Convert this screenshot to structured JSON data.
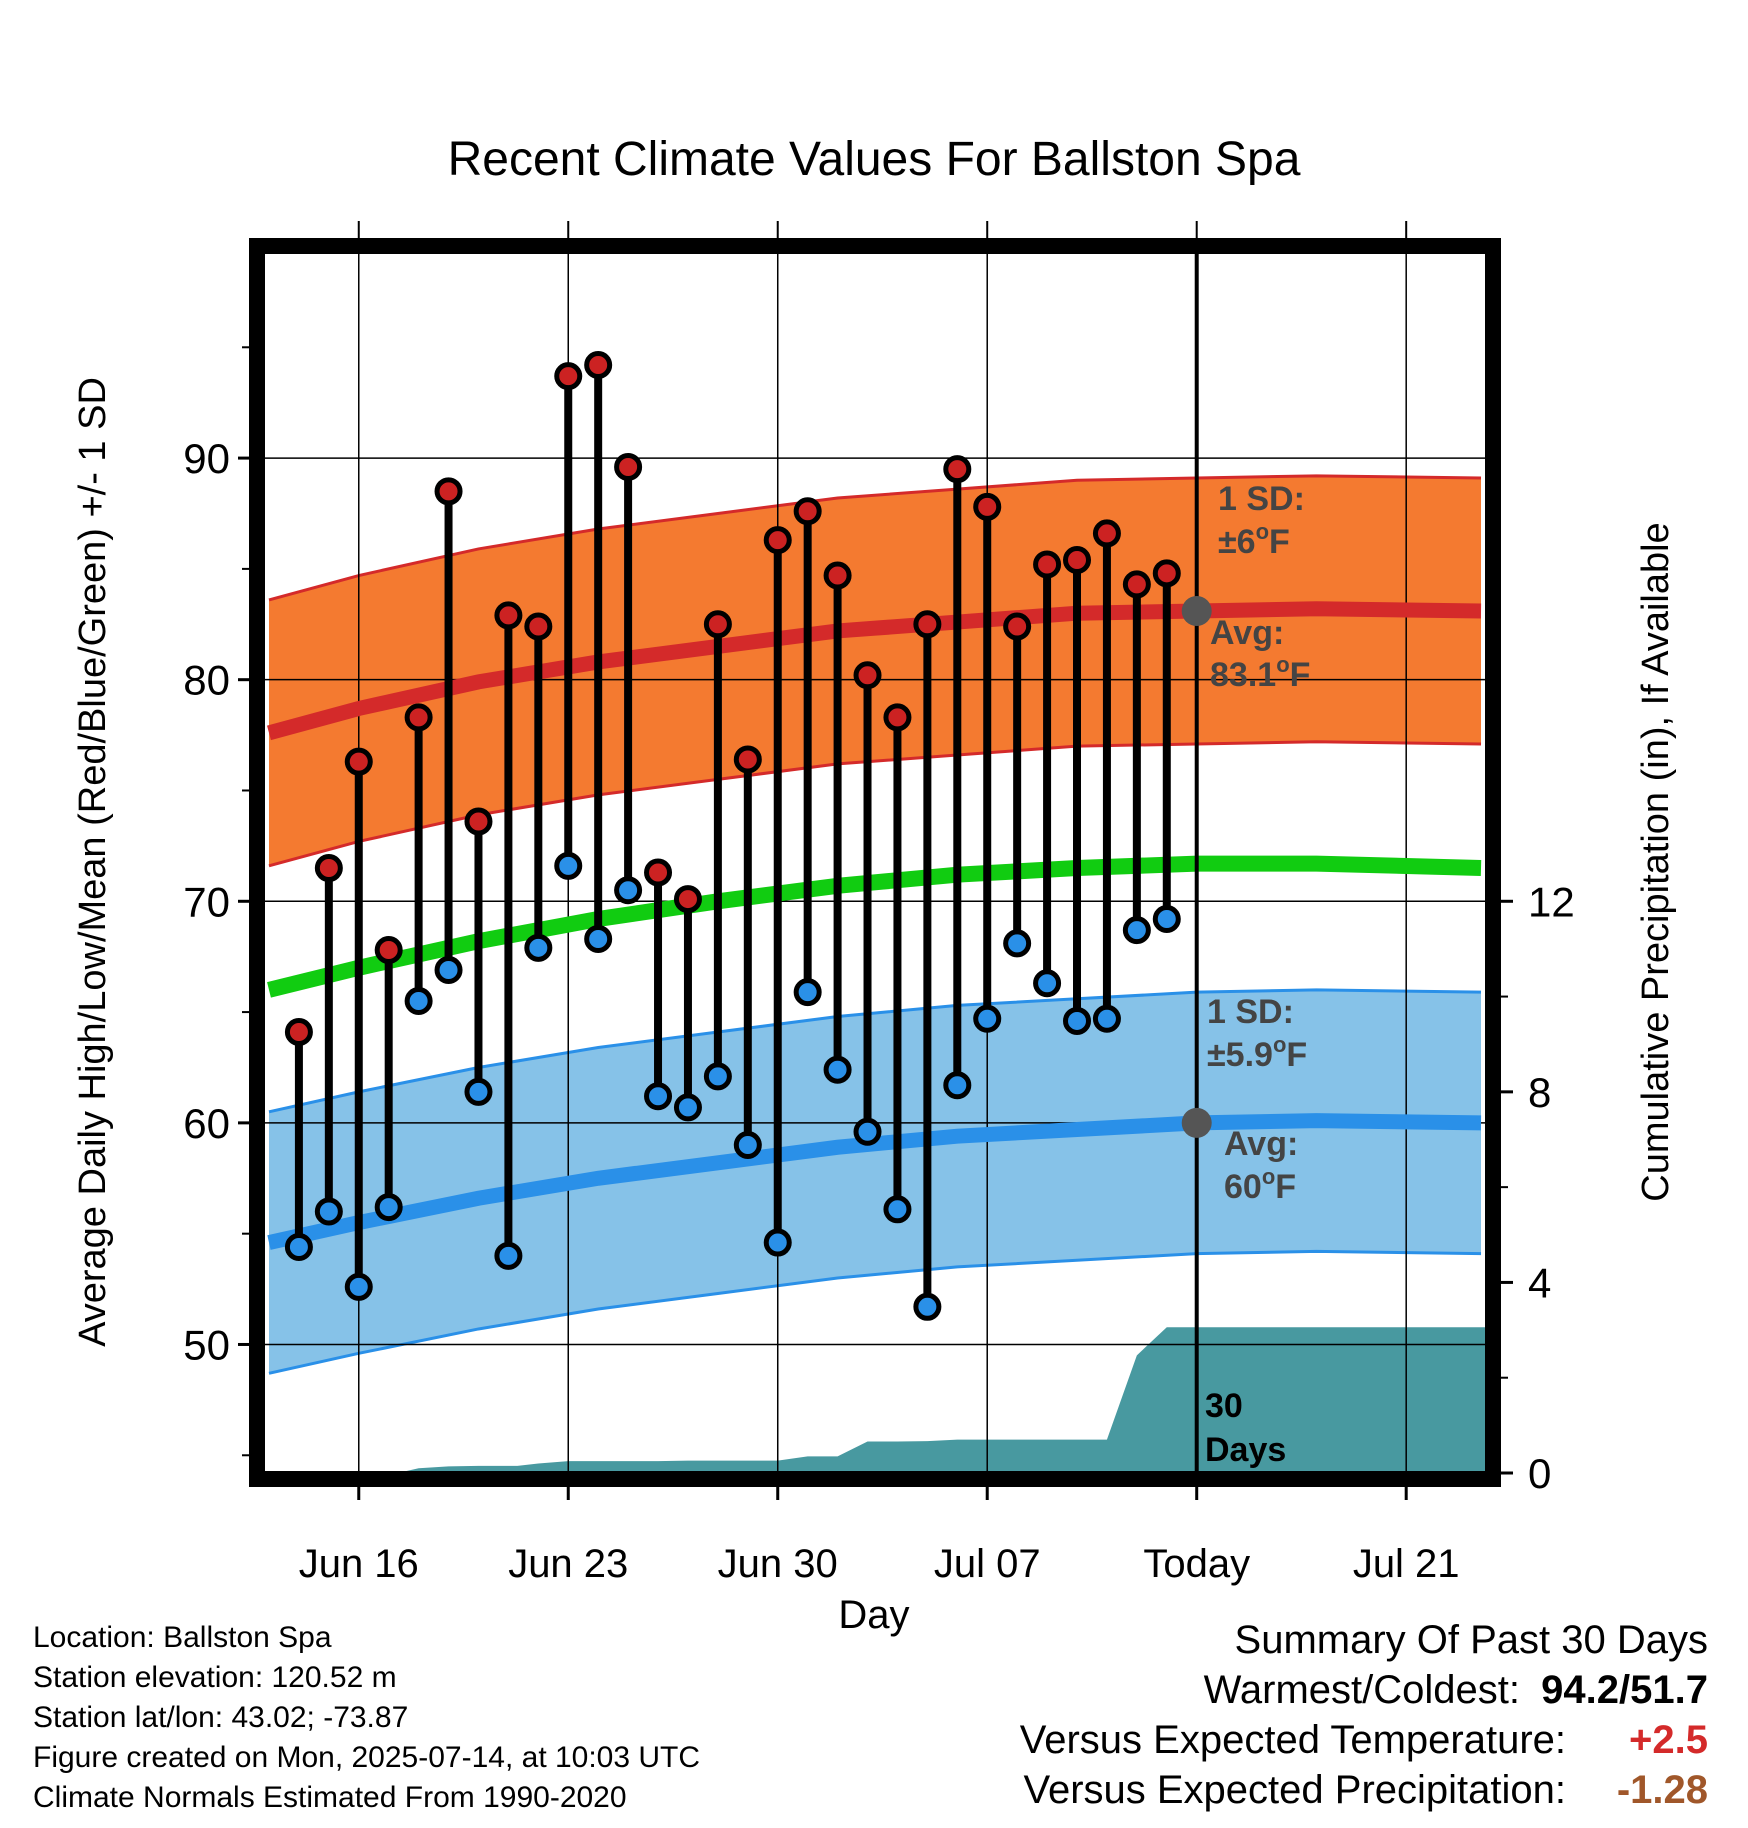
{
  "chart_data": {
    "type": "line",
    "title": "Recent Climate Values For Ballston Spa",
    "xlabel": "Day",
    "ylabel": "Average Daily High/Low/Mean (Red/Blue/Green) +/- 1 SD",
    "ylabel_right": "Cumulative Precipitation (in), If Available",
    "x_tick_labels": [
      "Jun 16",
      "Jun 23",
      "Jun 30",
      "Jul 07",
      "Today",
      "Jul 21"
    ],
    "x_tick_days": [
      16,
      23,
      30,
      37,
      44,
      51
    ],
    "xlim": [
      12.8,
      53.7
    ],
    "today_day": 44,
    "ylim": [
      44.2,
      99.3
    ],
    "y_ticks": [
      50,
      60,
      70,
      80,
      90
    ],
    "y2_ticks": [
      0,
      4,
      8,
      12
    ],
    "y2_scale": {
      "0": 44.2,
      "12": 70.0
    },
    "grid": true,
    "series": [
      {
        "name": "High",
        "color": "#cc2222",
        "days": [
          14,
          15,
          16,
          17,
          18,
          19,
          20,
          21,
          22,
          23,
          24,
          25,
          26,
          27,
          28,
          29,
          30,
          31,
          32,
          33,
          34,
          35,
          36,
          37,
          38,
          39,
          40,
          41,
          42,
          43
        ],
        "values": [
          64.1,
          71.5,
          76.3,
          67.8,
          78.3,
          88.5,
          73.6,
          82.9,
          82.4,
          93.7,
          94.2,
          89.6,
          71.3,
          70.1,
          82.5,
          76.4,
          86.3,
          87.6,
          84.7,
          80.2,
          78.3,
          82.5,
          89.5,
          87.8,
          82.4,
          85.2,
          85.4,
          86.6,
          84.3,
          84.8
        ]
      },
      {
        "name": "Low",
        "color": "#2a90e8",
        "days": [
          14,
          15,
          16,
          17,
          18,
          19,
          20,
          21,
          22,
          23,
          24,
          25,
          26,
          27,
          28,
          29,
          30,
          31,
          32,
          33,
          34,
          35,
          36,
          37,
          38,
          39,
          40,
          41,
          42,
          43
        ],
        "values": [
          54.4,
          56.0,
          52.6,
          56.2,
          65.5,
          66.9,
          61.4,
          54.0,
          67.9,
          71.6,
          68.3,
          70.5,
          61.2,
          60.7,
          62.1,
          59.0,
          54.6,
          65.9,
          62.4,
          59.6,
          56.1,
          51.7,
          61.7,
          64.7,
          68.1,
          66.3,
          64.6,
          64.7,
          68.7,
          69.2
        ]
      }
    ],
    "normals": {
      "days": [
        13,
        16,
        20,
        24,
        28,
        32,
        36,
        40,
        44,
        48,
        53.5
      ],
      "high_avg": [
        77.6,
        78.7,
        79.9,
        80.8,
        81.5,
        82.2,
        82.6,
        83.0,
        83.1,
        83.2,
        83.1
      ],
      "low_avg": [
        54.6,
        55.5,
        56.6,
        57.5,
        58.2,
        58.9,
        59.4,
        59.7,
        60.0,
        60.1,
        60.0
      ],
      "mean_avg": [
        66.0,
        67.0,
        68.2,
        69.2,
        70.0,
        70.7,
        71.2,
        71.5,
        71.7,
        71.7,
        71.5
      ],
      "sd_high": 6,
      "sd_low": 5.9,
      "high_band_color": "#f47a30",
      "low_band_color": "#86c2e8",
      "mean_color": "#11cc11"
    },
    "precipitation": {
      "color": "#4899a0",
      "days": [
        13,
        17.3,
        18,
        19,
        20,
        21,
        21.3,
        22,
        23,
        24,
        25,
        26,
        27,
        28,
        29,
        30,
        31,
        32,
        33,
        34,
        35,
        36,
        37,
        38,
        39,
        40,
        41,
        42,
        43,
        44,
        45,
        53.7
      ],
      "values": [
        0,
        0,
        0.1,
        0.14,
        0.15,
        0.15,
        0.15,
        0.2,
        0.25,
        0.25,
        0.25,
        0.25,
        0.26,
        0.26,
        0.26,
        0.26,
        0.35,
        0.35,
        0.66,
        0.66,
        0.67,
        0.7,
        0.7,
        0.7,
        0.7,
        0.7,
        0.7,
        2.47,
        3.06,
        3.06,
        3.06,
        3.06
      ]
    },
    "annotations": {
      "high_sd_label": "1 SD:",
      "high_sd_value": "±6",
      "high_avg_label": "Avg:",
      "high_avg_value": "83.1",
      "low_sd_label": "1 SD:",
      "low_sd_value": "±5.9",
      "low_avg_label": "Avg:",
      "low_avg_value": "60",
      "degree_symbol": "o",
      "unit": "F",
      "period_value": "30",
      "period_unit": "Days"
    }
  },
  "footer": {
    "location": "Location: Ballston Spa",
    "elevation": "Station elevation: 120.52 m",
    "latlon": "Station lat/lon: 43.02; -73.87",
    "created": "Figure created on Mon, 2025-07-14, at 10:03 UTC",
    "normals": "Climate Normals Estimated From 1990-2020"
  },
  "summary": {
    "title": "Summary Of Past 30 Days",
    "warmest_label": "Warmest/Coldest:",
    "warmest_value": "94.2/51.7",
    "temp_label": "Versus Expected Temperature:",
    "temp_value": "+2.5",
    "temp_color": "#d42a2a",
    "precip_label": "Versus Expected Precipitation:",
    "precip_value": "-1.28",
    "precip_color": "#a0572a"
  }
}
